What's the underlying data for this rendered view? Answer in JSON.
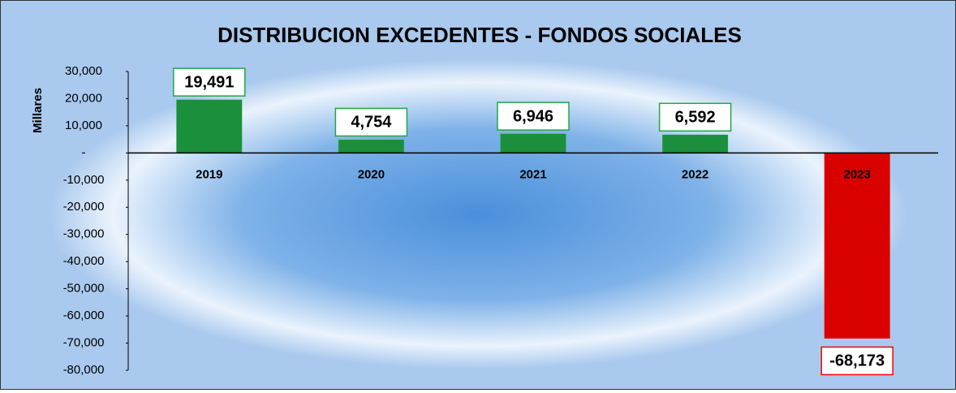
{
  "chart_data": {
    "type": "bar",
    "title": "DISTRIBUCION EXCEDENTES - FONDOS SOCIALES",
    "y_label": "Millares",
    "categories": [
      "2019",
      "2020",
      "2021",
      "2022",
      "2023"
    ],
    "values": [
      19491,
      4754,
      6946,
      6592,
      -68173
    ],
    "value_labels": [
      "19,491",
      "4,754",
      "6,946",
      "6,592",
      "-68,173"
    ],
    "colors": [
      "#1fa845",
      "#1fa845",
      "#1fa845",
      "#1fa845",
      "#ff0000"
    ],
    "ylim": [
      -80000,
      30000
    ],
    "yticks": [
      {
        "value": 30000,
        "label": "30,000"
      },
      {
        "value": 20000,
        "label": "20,000"
      },
      {
        "value": 10000,
        "label": "10,000"
      },
      {
        "value": 0,
        "label": "-"
      },
      {
        "value": -10000,
        "label": "-10,000"
      },
      {
        "value": -20000,
        "label": "-20,000"
      },
      {
        "value": -30000,
        "label": "-30,000"
      },
      {
        "value": -40000,
        "label": "-40,000"
      },
      {
        "value": -50000,
        "label": "-50,000"
      },
      {
        "value": -60000,
        "label": "-60,000"
      },
      {
        "value": -70000,
        "label": "-70,000"
      },
      {
        "value": -80000,
        "label": "-80,000"
      }
    ]
  }
}
